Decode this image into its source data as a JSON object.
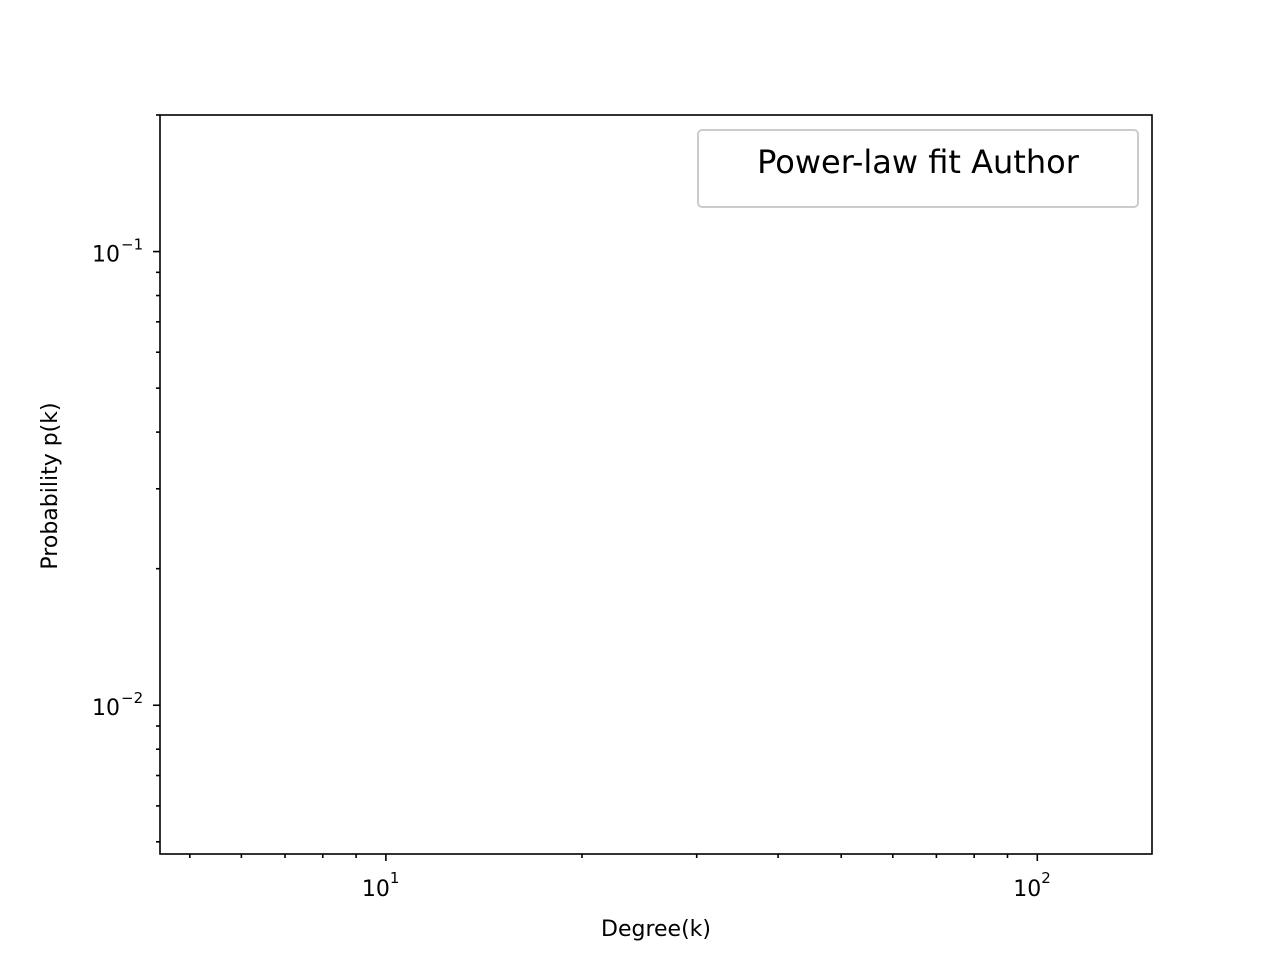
{
  "chart_data": {
    "type": "scatter",
    "title": "",
    "xlabel": "Degree(k)",
    "ylabel": "Probability p(k)",
    "xscale": "log",
    "yscale": "log",
    "xlim": [
      4.5,
      150
    ],
    "ylim": [
      0.0047,
      0.2
    ],
    "x_ticks": [
      {
        "value": 10,
        "base": "10",
        "exp": "1"
      },
      {
        "value": 100,
        "base": "10",
        "exp": "2"
      }
    ],
    "y_ticks": [
      {
        "value": 0.1,
        "base": "10",
        "exp": "−1"
      },
      {
        "value": 0.01,
        "base": "10",
        "exp": "−2"
      }
    ],
    "grid": false,
    "legend": {
      "placement": "upper right",
      "entries": [
        "Power-law fit Author"
      ]
    },
    "series": []
  },
  "colors": {
    "axes": "#000000",
    "background": "#ffffff",
    "legend_border": "#cccccc"
  }
}
